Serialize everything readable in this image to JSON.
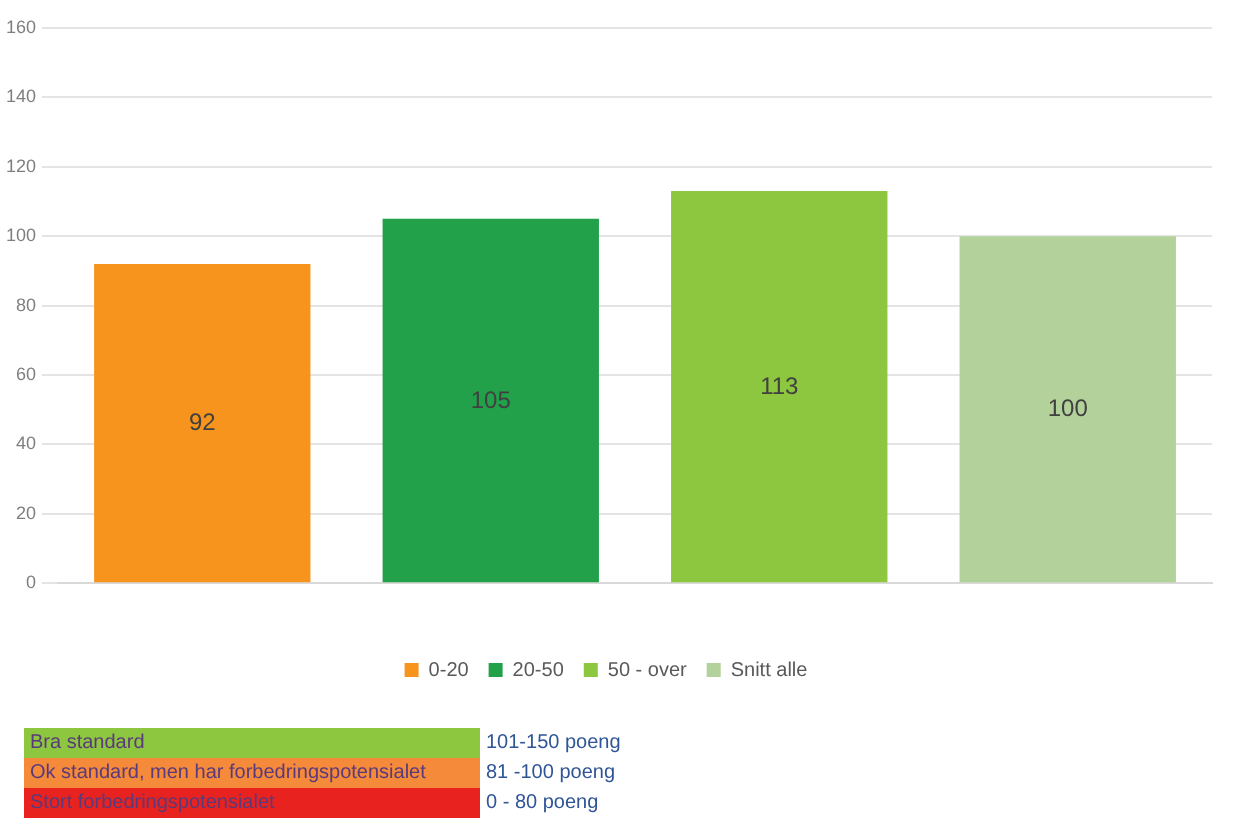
{
  "chart_data": {
    "type": "bar",
    "categories": [
      null,
      null,
      null,
      null
    ],
    "series": [
      {
        "name": "0-20",
        "color": "#f7941d",
        "values": [
          92,
          null,
          null,
          null
        ]
      },
      {
        "name": "20-50",
        "color": "#23a14a",
        "values": [
          null,
          105,
          null,
          null
        ]
      },
      {
        "name": "50 - over",
        "color": "#8dc63f",
        "values": [
          null,
          null,
          113,
          null
        ]
      },
      {
        "name": "Snitt alle",
        "color": "#b3d19a",
        "values": [
          null,
          null,
          null,
          100
        ]
      }
    ],
    "ylim": [
      0,
      160
    ],
    "yticks": [
      0,
      20,
      40,
      60,
      80,
      100,
      120,
      140,
      160
    ],
    "grid": "y",
    "legend": "bottom",
    "data_labels": true,
    "annotations": [
      "Bra standard",
      "101-150 poeng",
      "Ok standard, men har forbedringspotensialet",
      "81 -100 poeng",
      "Stort forbedringspotensialet",
      "0 - 80 poeng"
    ]
  }
}
